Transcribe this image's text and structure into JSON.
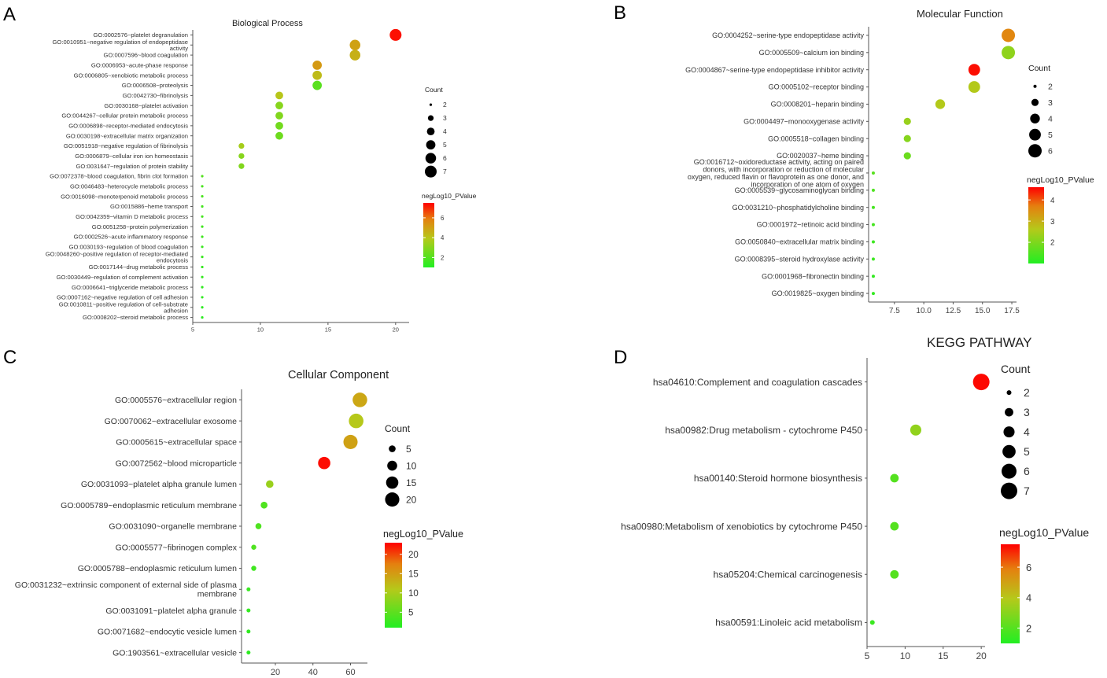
{
  "colors": {
    "low": "#22ee22",
    "mid": "#b5c91a",
    "high": "#ff0000",
    "axis": "#555555",
    "label": "#333333"
  },
  "chart_data": [
    {
      "panel": "A",
      "type": "scatter",
      "title": "Biological Process",
      "xticks": [
        5,
        10,
        15,
        20
      ],
      "xlim": [
        5,
        21
      ],
      "size_legend": {
        "title": "Count",
        "values": [
          2,
          3,
          4,
          5,
          6,
          7
        ],
        "range": [
          2,
          7
        ]
      },
      "color_legend": {
        "title": "negLog10_PValue",
        "ticks": [
          2,
          4,
          6
        ],
        "range": [
          1,
          7.5
        ]
      },
      "points": [
        {
          "term": "GO:0002576~platelet degranulation",
          "x": 20,
          "count": 7,
          "p": 7.3
        },
        {
          "term": "GO:0010951~negative regulation of endopeptidase activity",
          "x": 17,
          "count": 6,
          "p": 5.0
        },
        {
          "term": "GO:0007596~blood coagulation",
          "x": 17,
          "count": 6,
          "p": 4.6
        },
        {
          "term": "GO:0006953~acute-phase response",
          "x": 14.2,
          "count": 5,
          "p": 5.2
        },
        {
          "term": "GO:0006805~xenobiotic metabolic process",
          "x": 14.2,
          "count": 5,
          "p": 4.3
        },
        {
          "term": "GO:0006508~proteolysis",
          "x": 14.2,
          "count": 5,
          "p": 2.1
        },
        {
          "term": "GO:0042730~fibrinolysis",
          "x": 11.4,
          "count": 4,
          "p": 4.0
        },
        {
          "term": "GO:0030168~platelet activation",
          "x": 11.4,
          "count": 4,
          "p": 3.0
        },
        {
          "term": "GO:0044267~cellular protein metabolic process",
          "x": 11.4,
          "count": 4,
          "p": 2.9
        },
        {
          "term": "GO:0006898~receptor-mediated endocytosis",
          "x": 11.4,
          "count": 4,
          "p": 2.6
        },
        {
          "term": "GO:0030198~extracellular matrix organization",
          "x": 11.4,
          "count": 4,
          "p": 2.5
        },
        {
          "term": "GO:0051918~negative regulation of fibrinolysis",
          "x": 8.6,
          "count": 3,
          "p": 3.6
        },
        {
          "term": "GO:0006879~cellular iron ion homeostasis",
          "x": 8.6,
          "count": 3,
          "p": 3.0
        },
        {
          "term": "GO:0031647~regulation of protein stability",
          "x": 8.6,
          "count": 3,
          "p": 2.9
        },
        {
          "term": "GO:0072378~blood coagulation, fibrin clot formation",
          "x": 5.7,
          "count": 2,
          "p": 2.0
        },
        {
          "term": "GO:0046483~heterocycle metabolic process",
          "x": 5.7,
          "count": 2,
          "p": 1.8
        },
        {
          "term": "GO:0016098~monoterpenoid metabolic process",
          "x": 5.7,
          "count": 2,
          "p": 1.8
        },
        {
          "term": "GO:0015886~heme transport",
          "x": 5.7,
          "count": 2,
          "p": 1.7
        },
        {
          "term": "GO:0042359~vitamin D metabolic process",
          "x": 5.7,
          "count": 2,
          "p": 1.7
        },
        {
          "term": "GO:0051258~protein polymerization",
          "x": 5.7,
          "count": 2,
          "p": 1.6
        },
        {
          "term": "GO:0002526~acute inflammatory response",
          "x": 5.7,
          "count": 2,
          "p": 1.6
        },
        {
          "term": "GO:0030193~regulation of blood coagulation",
          "x": 5.7,
          "count": 2,
          "p": 1.5
        },
        {
          "term": "GO:0048260~positive regulation of receptor-mediated endocytosis",
          "x": 5.7,
          "count": 2,
          "p": 1.5
        },
        {
          "term": "GO:0017144~drug metabolic process",
          "x": 5.7,
          "count": 2,
          "p": 1.4
        },
        {
          "term": "GO:0030449~regulation of complement activation",
          "x": 5.7,
          "count": 2,
          "p": 1.4
        },
        {
          "term": "GO:0006641~triglyceride metabolic process",
          "x": 5.7,
          "count": 2,
          "p": 1.3
        },
        {
          "term": "GO:0007162~negative regulation of cell adhesion",
          "x": 5.7,
          "count": 2,
          "p": 1.3
        },
        {
          "term": "GO:0010811~positive regulation of cell-substrate adhesion",
          "x": 5.7,
          "count": 2,
          "p": 1.2
        },
        {
          "term": "GO:0008202~steroid metabolic process",
          "x": 5.7,
          "count": 2,
          "p": 1.2
        }
      ]
    },
    {
      "panel": "B",
      "type": "scatter",
      "title": "Molecular Function",
      "xticks": [
        7.5,
        10.0,
        12.5,
        15.0,
        17.5
      ],
      "xlim": [
        5.3,
        17.9
      ],
      "size_legend": {
        "title": "Count",
        "values": [
          2,
          3,
          4,
          5,
          6
        ],
        "range": [
          2,
          6
        ]
      },
      "color_legend": {
        "title": "negLog10_PValue",
        "ticks": [
          2,
          3,
          4
        ],
        "range": [
          1,
          4.6
        ]
      },
      "points": [
        {
          "term": "GO:0004252~serine-type endopeptidase activity",
          "x": 17.2,
          "count": 6,
          "p": 3.6
        },
        {
          "term": "GO:0005509~calcium ion binding",
          "x": 17.2,
          "count": 6,
          "p": 2.2
        },
        {
          "term": "GO:0004867~serine-type endopeptidase inhibitor activity",
          "x": 14.3,
          "count": 5,
          "p": 4.5
        },
        {
          "term": "GO:0005102~receptor binding",
          "x": 14.3,
          "count": 5,
          "p": 2.6
        },
        {
          "term": "GO:0008201~heparin binding",
          "x": 11.4,
          "count": 4,
          "p": 2.6
        },
        {
          "term": "GO:0004497~monooxygenase activity",
          "x": 8.6,
          "count": 3,
          "p": 2.3
        },
        {
          "term": "GO:0005518~collagen binding",
          "x": 8.6,
          "count": 3,
          "p": 2.1
        },
        {
          "term": "GO:0020037~heme binding",
          "x": 8.6,
          "count": 3,
          "p": 1.8
        },
        {
          "term": "GO:0016712~oxidoreductase activity, acting on paired donors, with incorporation or reduction of molecular oxygen, reduced flavin or flavoprotein as one donor, and incorporation of one atom of oxygen",
          "x": 5.7,
          "count": 2,
          "p": 1.6
        },
        {
          "term": "GO:0005539~glycosaminoglycan binding",
          "x": 5.7,
          "count": 2,
          "p": 1.5
        },
        {
          "term": "GO:0031210~phosphatidylcholine binding",
          "x": 5.7,
          "count": 2,
          "p": 1.4
        },
        {
          "term": "GO:0001972~retinoic acid binding",
          "x": 5.7,
          "count": 2,
          "p": 1.4
        },
        {
          "term": "GO:0050840~extracellular matrix binding",
          "x": 5.7,
          "count": 2,
          "p": 1.3
        },
        {
          "term": "GO:0008395~steroid hydroxylase activity",
          "x": 5.7,
          "count": 2,
          "p": 1.3
        },
        {
          "term": "GO:0001968~fibronectin binding",
          "x": 5.7,
          "count": 2,
          "p": 1.2
        },
        {
          "term": "GO:0019825~oxygen binding",
          "x": 5.7,
          "count": 2,
          "p": 1.2
        }
      ]
    },
    {
      "panel": "C",
      "type": "scatter",
      "title": "Cellular Component",
      "xticks": [
        20,
        40,
        60
      ],
      "xlim": [
        2,
        69
      ],
      "size_legend": {
        "title": "Count",
        "values": [
          5,
          10,
          15,
          20
        ],
        "range": [
          2,
          22
        ]
      },
      "color_legend": {
        "title": "negLog10_PValue",
        "ticks": [
          5,
          10,
          15,
          20
        ],
        "range": [
          1,
          23
        ]
      },
      "points": [
        {
          "term": "GO:0005576~extracellular region",
          "x": 65,
          "count": 21,
          "p": 14
        },
        {
          "term": "GO:0070062~extracellular exosome",
          "x": 63,
          "count": 21,
          "p": 11
        },
        {
          "term": "GO:0005615~extracellular space",
          "x": 60,
          "count": 20,
          "p": 14.5
        },
        {
          "term": "GO:0072562~blood microparticle",
          "x": 46,
          "count": 15,
          "p": 22.5
        },
        {
          "term": "GO:0031093~platelet alpha granule lumen",
          "x": 17,
          "count": 6,
          "p": 9
        },
        {
          "term": "GO:0005789~endoplasmic reticulum membrane",
          "x": 14,
          "count": 5,
          "p": 4
        },
        {
          "term": "GO:0031090~organelle membrane",
          "x": 11,
          "count": 4,
          "p": 4
        },
        {
          "term": "GO:0005577~fibrinogen complex",
          "x": 8.5,
          "count": 3,
          "p": 4
        },
        {
          "term": "GO:0005788~endoplasmic reticulum lumen",
          "x": 8.5,
          "count": 3,
          "p": 3
        },
        {
          "term": "GO:0031232~extrinsic component of external side of plasma membrane",
          "x": 5.7,
          "count": 2,
          "p": 2.5
        },
        {
          "term": "GO:0031091~platelet alpha granule",
          "x": 5.7,
          "count": 2,
          "p": 2.2
        },
        {
          "term": "GO:0071682~endocytic vesicle lumen",
          "x": 5.7,
          "count": 2,
          "p": 2
        },
        {
          "term": "GO:1903561~extracellular vesicle",
          "x": 5.7,
          "count": 2,
          "p": 1.8
        }
      ]
    },
    {
      "panel": "D",
      "type": "scatter",
      "title": "KEGG PATHWAY",
      "xticks": [
        5,
        10,
        15,
        20
      ],
      "xlim": [
        5,
        20.5
      ],
      "size_legend": {
        "title": "Count",
        "values": [
          2,
          3,
          4,
          5,
          6,
          7
        ],
        "range": [
          2,
          7
        ]
      },
      "color_legend": {
        "title": "negLog10_PValue",
        "ticks": [
          2,
          4,
          6
        ],
        "range": [
          1,
          7.5
        ]
      },
      "points": [
        {
          "term": "hsa04610:Complement and coagulation cascades",
          "x": 20,
          "count": 7,
          "p": 7.4
        },
        {
          "term": "hsa00982:Drug metabolism - cytochrome P450",
          "x": 11.4,
          "count": 4,
          "p": 3.2
        },
        {
          "term": "hsa00140:Steroid hormone biosynthesis",
          "x": 8.6,
          "count": 3,
          "p": 2.0
        },
        {
          "term": "hsa00980:Metabolism of xenobiotics by cytochrome P450",
          "x": 8.6,
          "count": 3,
          "p": 2.0
        },
        {
          "term": "hsa05204:Chemical carcinogenesis",
          "x": 8.6,
          "count": 3,
          "p": 2.0
        },
        {
          "term": "hsa00591:Linoleic acid metabolism",
          "x": 5.7,
          "count": 2,
          "p": 1.5
        }
      ]
    }
  ]
}
